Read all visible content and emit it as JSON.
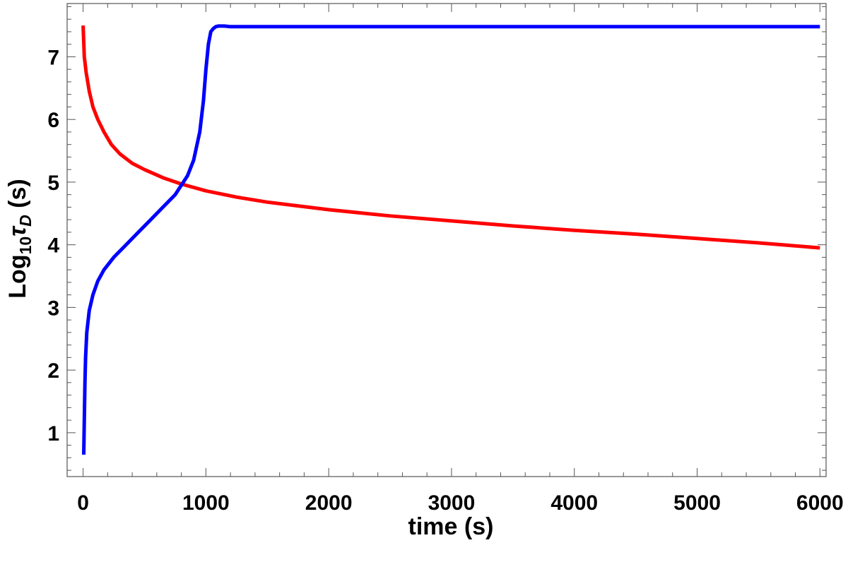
{
  "chart_data": {
    "type": "line",
    "title": "",
    "xlabel": "time (s)",
    "ylabel": {
      "base": "Log",
      "sub1": "10",
      "tau": "τ",
      "sub2": "D",
      "unit": " (s)"
    },
    "xlim": [
      -130,
      6050
    ],
    "ylim": [
      0.3,
      7.85
    ],
    "xticks": [
      0,
      1000,
      2000,
      3000,
      4000,
      5000,
      6000
    ],
    "yticks": [
      1,
      2,
      3,
      4,
      5,
      6,
      7
    ],
    "grid": false,
    "legend": "none",
    "series": [
      {
        "color": "#ff0000",
        "x": [
          0,
          10,
          25,
          50,
          80,
          120,
          170,
          230,
          300,
          400,
          500,
          650,
          800,
          1000,
          1250,
          1500,
          2000,
          2500,
          3000,
          3500,
          4000,
          4500,
          5000,
          5500,
          6000
        ],
        "y": [
          7.5,
          7.0,
          6.75,
          6.45,
          6.2,
          6.0,
          5.8,
          5.6,
          5.45,
          5.3,
          5.2,
          5.07,
          4.97,
          4.86,
          4.76,
          4.68,
          4.56,
          4.46,
          4.38,
          4.3,
          4.23,
          4.17,
          4.1,
          4.03,
          3.95
        ]
      },
      {
        "color": "#0000ff",
        "x": [
          5,
          10,
          15,
          20,
          30,
          50,
          80,
          120,
          170,
          250,
          350,
          450,
          550,
          650,
          750,
          850,
          900,
          950,
          980,
          1000,
          1020,
          1040,
          1060,
          1080,
          1100,
          1150,
          1200,
          2000,
          3000,
          4000,
          5000,
          6000
        ],
        "y": [
          0.65,
          1.2,
          1.8,
          2.2,
          2.6,
          2.95,
          3.2,
          3.42,
          3.6,
          3.8,
          4.0,
          4.2,
          4.4,
          4.6,
          4.8,
          5.1,
          5.35,
          5.8,
          6.3,
          6.8,
          7.2,
          7.4,
          7.45,
          7.48,
          7.49,
          7.49,
          7.48,
          7.48,
          7.48,
          7.48,
          7.48,
          7.48
        ]
      }
    ]
  }
}
